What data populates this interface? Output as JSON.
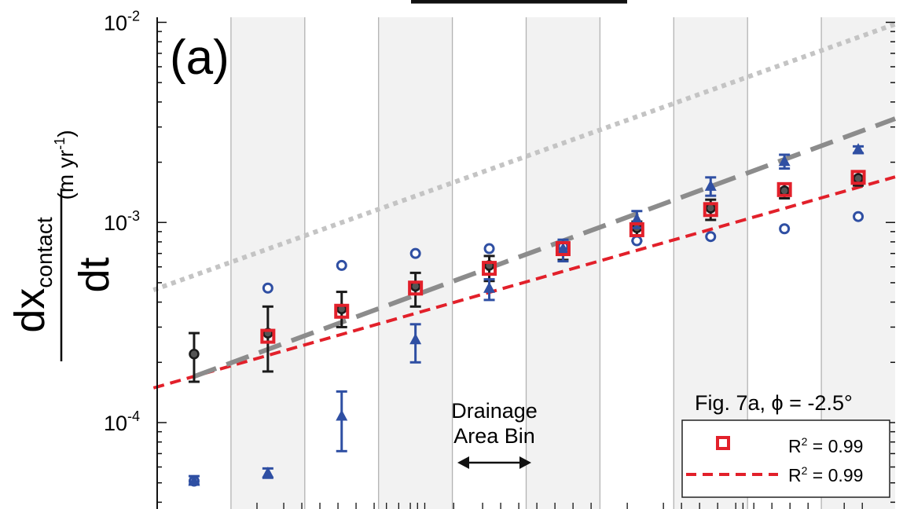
{
  "chart_data": {
    "type": "scatter",
    "panel_label": "(a)",
    "title": "",
    "ylabel": {
      "numerator_main": "dx",
      "numerator_sub": "contact",
      "denominator": "dt",
      "units_prefix": "(m yr",
      "units_exp": "-1",
      "units_suffix": ")"
    },
    "y_scale": "log",
    "ylim": [
      3.7e-05,
      0.0106
    ],
    "y_ticks": [
      {
        "value": 0.0001,
        "base": "10",
        "exp": "-4"
      },
      {
        "value": 0.001,
        "base": "10",
        "exp": "-3"
      },
      {
        "value": 0.01,
        "base": "10",
        "exp": "-2"
      }
    ],
    "n_bins": 10,
    "shaded_bins": [
      1,
      3,
      5,
      7,
      9
    ],
    "bin_arrow": {
      "label_line1": "Drainage",
      "label_line2": "Area Bin"
    },
    "legend": {
      "title": "Fig. 7a, ϕ = -2.5°",
      "entries": [
        {
          "marker": "red-square",
          "text_main": "R",
          "text_sup": "2",
          "text_rest": " = 0.99"
        },
        {
          "marker": "red-dashed-line",
          "text_main": "R",
          "text_sup": "2",
          "text_rest": " = 0.99"
        }
      ],
      "placement": "bottom-right"
    },
    "colors": {
      "black_series": "#1a1a1a",
      "black_fill": "#555555",
      "blue": "#2f4fa3",
      "red": "#e2202a",
      "gray_dash": "#8c8c8c",
      "gray_dotted": "#c4c4c4",
      "bin_shade": "#f2f2f2",
      "bin_line": "#b3b3b3"
    },
    "series": [
      {
        "name": "",
        "marker": "black-circle",
        "x": [
          1,
          2,
          3,
          4,
          5,
          6,
          7,
          8,
          9,
          10
        ],
        "y": [
          0.00022,
          0.00028,
          0.00037,
          0.00048,
          0.00061,
          0.00076,
          0.00094,
          0.00118,
          0.00144,
          0.00166
        ],
        "err_low": [
          0.00016,
          0.00018,
          0.0003,
          0.00038,
          0.00051,
          0.00065,
          0.00081,
          0.00103,
          0.00132,
          0.00153
        ],
        "err_high": [
          0.00028,
          0.00038,
          0.00045,
          0.00056,
          0.00068,
          0.00078,
          0.00101,
          0.0013,
          0.00156,
          0.0018
        ]
      },
      {
        "name": "",
        "marker": "blue-circle",
        "x": [
          1,
          2,
          3,
          4,
          5,
          6,
          7,
          8,
          9,
          10
        ],
        "y": [
          5.1e-05,
          0.00047,
          0.00061,
          0.0007,
          0.00074,
          0.00076,
          0.00081,
          0.00085,
          0.00093,
          0.00107
        ]
      },
      {
        "name": "",
        "marker": "blue-triangle",
        "x": [
          1,
          2,
          3,
          4,
          5,
          6,
          7,
          8,
          9,
          10
        ],
        "y": [
          5.1e-05,
          5.6e-05,
          0.000108,
          0.00026,
          0.00047,
          0.00074,
          0.00104,
          0.00152,
          0.00202,
          0.00232
        ],
        "err_low": [
          4.9e-05,
          5.3e-05,
          7.2e-05,
          0.0002,
          0.00041,
          0.00064,
          0.00094,
          0.00136,
          0.00186,
          0.00222
        ],
        "err_high": [
          5.4e-05,
          5.9e-05,
          0.000143,
          0.00031,
          0.00052,
          0.00082,
          0.00114,
          0.00168,
          0.00218,
          0.0024
        ]
      },
      {
        "name": "",
        "marker": "red-square",
        "x": [
          1,
          2,
          3,
          4,
          5,
          6,
          7,
          8,
          9,
          10
        ],
        "y": [
          null,
          0.00027,
          0.00036,
          0.00047,
          0.00059,
          0.00074,
          0.00092,
          0.00116,
          0.00146,
          0.00168
        ]
      }
    ],
    "lines": [
      {
        "style": "red-dashed",
        "x": [
          0.45,
          10.5
        ],
        "y": [
          0.000149,
          0.00169
        ]
      },
      {
        "style": "gray-dashed",
        "x": [
          1,
          10.5
        ],
        "y": [
          0.00017,
          0.0033
        ]
      },
      {
        "style": "gray-dotted",
        "x": [
          0.45,
          10.5
        ],
        "y": [
          0.00046,
          0.0098
        ]
      }
    ]
  }
}
